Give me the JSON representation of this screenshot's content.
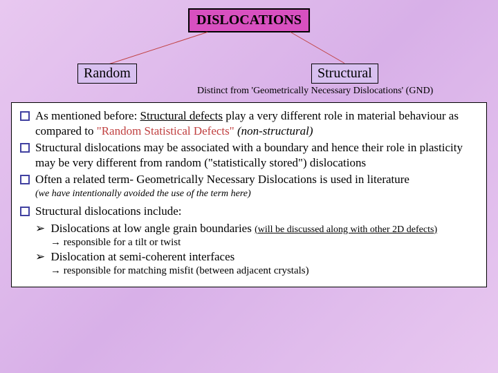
{
  "title": "DISLOCATIONS",
  "branches": {
    "left": "Random",
    "right": "Structural"
  },
  "subtitle": "Distinct from 'Geometrically Necessary Dislocations' (GND)",
  "bullets": {
    "b1_pre": "As mentioned before: ",
    "b1_mid": "Structural defects",
    "b1_post1": " play a very different role in material behaviour as compared to ",
    "b1_quote": "\"Random Statistical Defects\"",
    "b1_ital": " (non-structural)",
    "b2": "Structural dislocations may be associated with a boundary and hence their role in plasticity may be very different from random (\"statistically stored\") dislocations",
    "b3": "Often a related term- Geometrically Necessary Dislocations is used in literature",
    "b3_note": "(we have intentionally avoided the use of the term here)",
    "b4": "Structural dislocations include:",
    "s1_pre": "Dislocations at low angle grain boundaries ",
    "s1_link": "(will be discussed along with other 2D defects)",
    "s1_arrow": "→ responsible for a tilt or twist",
    "s2": "Dislocation at semi-coherent interfaces",
    "s2_arrow": "→ responsible for matching misfit (between adjacent crystals)"
  },
  "colors": {
    "title_bg": "#d850c0",
    "branch_bg": "#d8c0f0",
    "line_red": "#c04040",
    "bullet_border": "#4040a0",
    "bg_gradient_start": "#e8c8f0",
    "bg_gradient_mid": "#d8b0e8"
  }
}
